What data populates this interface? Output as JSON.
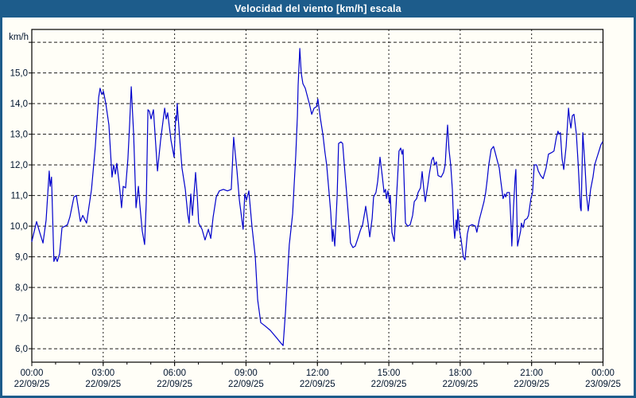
{
  "window": {
    "title": "Velocidad del viento [km/h] escala"
  },
  "chart_data": {
    "type": "line",
    "title": "Velocidad del viento [km/h] escala",
    "xlabel": "",
    "ylabel": "km/h",
    "xlim": [
      0,
      24
    ],
    "ylim": [
      5.56,
      16.42
    ],
    "grid": true,
    "legend": "none",
    "line_color": "#0000cc",
    "background": "#fffef7",
    "frame_color": "#1d5c8b",
    "yticks": [
      {
        "v": 6,
        "label": "6,0"
      },
      {
        "v": 7,
        "label": "7,0"
      },
      {
        "v": 8,
        "label": "8,0"
      },
      {
        "v": 9,
        "label": "9,0"
      },
      {
        "v": 10,
        "label": "10,0"
      },
      {
        "v": 11,
        "label": "11,0"
      },
      {
        "v": 12,
        "label": "12,0"
      },
      {
        "v": 13,
        "label": "13,0"
      },
      {
        "v": 14,
        "label": "14,0"
      },
      {
        "v": 15,
        "label": "15,0"
      },
      {
        "v": 16,
        "label": ""
      }
    ],
    "xticks": [
      {
        "t": 0,
        "time": "00:00",
        "date": "22/09/25"
      },
      {
        "t": 3,
        "time": "03:00",
        "date": "22/09/25"
      },
      {
        "t": 6,
        "time": "06:00",
        "date": "22/09/25"
      },
      {
        "t": 9,
        "time": "09:00",
        "date": "22/09/25"
      },
      {
        "t": 12,
        "time": "12:00",
        "date": "22/09/25"
      },
      {
        "t": 15,
        "time": "15:00",
        "date": "22/09/25"
      },
      {
        "t": 18,
        "time": "18:00",
        "date": "22/09/25"
      },
      {
        "t": 21,
        "time": "21:00",
        "date": "22/09/25"
      },
      {
        "t": 24,
        "time": "00:00",
        "date": "23/09/25"
      }
    ],
    "minor_tick_hours": 1,
    "series": [
      {
        "name": "Velocidad del viento",
        "color": "#0000cc",
        "points": [
          [
            0,
            9.5
          ],
          [
            0.2,
            10.15
          ],
          [
            0.33,
            9.8
          ],
          [
            0.47,
            9.45
          ],
          [
            0.6,
            10.2
          ],
          [
            0.73,
            11.8
          ],
          [
            0.77,
            11.3
          ],
          [
            0.83,
            11.6
          ],
          [
            0.93,
            8.85
          ],
          [
            1.0,
            9.0
          ],
          [
            1.07,
            8.85
          ],
          [
            1.17,
            9.1
          ],
          [
            1.27,
            9.95
          ],
          [
            1.4,
            10.0
          ],
          [
            1.5,
            10.05
          ],
          [
            1.6,
            10.3
          ],
          [
            1.77,
            10.95
          ],
          [
            1.87,
            11.0
          ],
          [
            2.04,
            10.15
          ],
          [
            2.14,
            10.35
          ],
          [
            2.3,
            10.1
          ],
          [
            2.51,
            11.2
          ],
          [
            2.67,
            12.6
          ],
          [
            2.81,
            14.2
          ],
          [
            2.87,
            14.5
          ],
          [
            2.94,
            14.3
          ],
          [
            3.01,
            14.4
          ],
          [
            3.11,
            14.0
          ],
          [
            3.24,
            13.3
          ],
          [
            3.37,
            11.6
          ],
          [
            3.44,
            12.0
          ],
          [
            3.51,
            11.7
          ],
          [
            3.57,
            12.05
          ],
          [
            3.67,
            11.4
          ],
          [
            3.77,
            10.6
          ],
          [
            3.84,
            11.3
          ],
          [
            3.94,
            11.25
          ],
          [
            4.04,
            12.2
          ],
          [
            4.11,
            13.3
          ],
          [
            4.18,
            14.55
          ],
          [
            4.28,
            13.0
          ],
          [
            4.38,
            10.6
          ],
          [
            4.48,
            11.3
          ],
          [
            4.54,
            10.7
          ],
          [
            4.64,
            9.85
          ],
          [
            4.74,
            9.4
          ],
          [
            4.81,
            10.8
          ],
          [
            4.88,
            13.8
          ],
          [
            4.94,
            13.75
          ],
          [
            5.01,
            13.5
          ],
          [
            5.11,
            13.8
          ],
          [
            5.28,
            11.8
          ],
          [
            5.41,
            12.8
          ],
          [
            5.58,
            13.85
          ],
          [
            5.65,
            13.5
          ],
          [
            5.71,
            13.7
          ],
          [
            5.85,
            12.8
          ],
          [
            5.98,
            12.25
          ],
          [
            6.05,
            13.6
          ],
          [
            6.08,
            13.45
          ],
          [
            6.11,
            14.0
          ],
          [
            6.21,
            12.9
          ],
          [
            6.31,
            11.9
          ],
          [
            6.45,
            11.2
          ],
          [
            6.55,
            10.4
          ],
          [
            6.61,
            10.1
          ],
          [
            6.68,
            11.05
          ],
          [
            6.75,
            10.35
          ],
          [
            6.88,
            11.75
          ],
          [
            6.95,
            11.0
          ],
          [
            7.01,
            10.1
          ],
          [
            7.15,
            9.9
          ],
          [
            7.28,
            9.55
          ],
          [
            7.42,
            9.9
          ],
          [
            7.52,
            9.6
          ],
          [
            7.62,
            10.3
          ],
          [
            7.75,
            10.95
          ],
          [
            7.88,
            11.15
          ],
          [
            8.05,
            11.2
          ],
          [
            8.22,
            11.15
          ],
          [
            8.38,
            11.2
          ],
          [
            8.48,
            12.9
          ],
          [
            8.62,
            11.8
          ],
          [
            8.72,
            10.85
          ],
          [
            8.88,
            9.9
          ],
          [
            8.95,
            11.05
          ],
          [
            9.02,
            10.85
          ],
          [
            9.12,
            11.15
          ],
          [
            9.25,
            10.0
          ],
          [
            9.39,
            9.0
          ],
          [
            9.49,
            7.6
          ],
          [
            9.62,
            6.85
          ],
          [
            9.79,
            6.75
          ],
          [
            10.02,
            6.6
          ],
          [
            10.29,
            6.35
          ],
          [
            10.45,
            6.2
          ],
          [
            10.56,
            6.1
          ],
          [
            10.66,
            7.2
          ],
          [
            10.76,
            8.6
          ],
          [
            10.82,
            9.4
          ],
          [
            10.89,
            9.9
          ],
          [
            10.96,
            10.4
          ],
          [
            11.02,
            11.3
          ],
          [
            11.09,
            12.3
          ],
          [
            11.16,
            13.6
          ],
          [
            11.19,
            14.6
          ],
          [
            11.26,
            15.8
          ],
          [
            11.32,
            15.0
          ],
          [
            11.39,
            14.65
          ],
          [
            11.49,
            14.5
          ],
          [
            11.59,
            14.2
          ],
          [
            11.66,
            14.0
          ],
          [
            11.76,
            13.65
          ],
          [
            11.86,
            13.85
          ],
          [
            11.96,
            13.9
          ],
          [
            12.02,
            14.15
          ],
          [
            12.13,
            13.5
          ],
          [
            12.23,
            13.0
          ],
          [
            12.32,
            12.4
          ],
          [
            12.39,
            12.0
          ],
          [
            12.49,
            11.1
          ],
          [
            12.56,
            10.45
          ],
          [
            12.63,
            9.5
          ],
          [
            12.66,
            9.9
          ],
          [
            12.73,
            9.35
          ],
          [
            12.83,
            11.0
          ],
          [
            12.89,
            12.7
          ],
          [
            12.99,
            12.75
          ],
          [
            13.06,
            12.7
          ],
          [
            13.13,
            12.0
          ],
          [
            13.23,
            11.05
          ],
          [
            13.29,
            10.45
          ],
          [
            13.39,
            9.45
          ],
          [
            13.49,
            9.3
          ],
          [
            13.59,
            9.35
          ],
          [
            13.7,
            9.6
          ],
          [
            13.8,
            9.85
          ],
          [
            13.9,
            10.05
          ],
          [
            14.0,
            10.5
          ],
          [
            14.03,
            10.65
          ],
          [
            14.13,
            10.1
          ],
          [
            14.2,
            9.65
          ],
          [
            14.3,
            10.25
          ],
          [
            14.36,
            10.95
          ],
          [
            14.46,
            11.1
          ],
          [
            14.53,
            11.45
          ],
          [
            14.63,
            12.25
          ],
          [
            14.73,
            11.6
          ],
          [
            14.8,
            11.1
          ],
          [
            14.86,
            11.2
          ],
          [
            14.9,
            10.9
          ],
          [
            14.96,
            11.15
          ],
          [
            15.03,
            10.75
          ],
          [
            15.06,
            11.0
          ],
          [
            15.13,
            9.8
          ],
          [
            15.23,
            9.5
          ],
          [
            15.33,
            11.0
          ],
          [
            15.43,
            12.45
          ],
          [
            15.5,
            12.55
          ],
          [
            15.56,
            12.35
          ],
          [
            15.6,
            12.5
          ],
          [
            15.7,
            10.1
          ],
          [
            15.8,
            10.0
          ],
          [
            15.9,
            10.05
          ],
          [
            16.0,
            10.35
          ],
          [
            16.07,
            10.8
          ],
          [
            16.17,
            10.9
          ],
          [
            16.23,
            11.1
          ],
          [
            16.33,
            11.25
          ],
          [
            16.4,
            11.78
          ],
          [
            16.47,
            11.2
          ],
          [
            16.53,
            10.8
          ],
          [
            16.63,
            11.3
          ],
          [
            16.7,
            11.7
          ],
          [
            16.8,
            12.15
          ],
          [
            16.87,
            12.25
          ],
          [
            16.93,
            12.0
          ],
          [
            17.0,
            12.1
          ],
          [
            17.07,
            11.65
          ],
          [
            17.2,
            11.6
          ],
          [
            17.3,
            11.75
          ],
          [
            17.37,
            12.0
          ],
          [
            17.43,
            12.85
          ],
          [
            17.47,
            13.3
          ],
          [
            17.53,
            12.5
          ],
          [
            17.6,
            12.0
          ],
          [
            17.67,
            11.2
          ],
          [
            17.73,
            9.95
          ],
          [
            17.77,
            9.6
          ],
          [
            17.83,
            10.2
          ],
          [
            17.87,
            9.85
          ],
          [
            17.9,
            10.55
          ],
          [
            17.97,
            9.85
          ],
          [
            18.03,
            9.6
          ],
          [
            18.13,
            9.0
          ],
          [
            18.2,
            8.9
          ],
          [
            18.3,
            9.75
          ],
          [
            18.37,
            10.0
          ],
          [
            18.5,
            10.05
          ],
          [
            18.64,
            10.0
          ],
          [
            18.7,
            9.8
          ],
          [
            18.8,
            10.2
          ],
          [
            18.9,
            10.5
          ],
          [
            19.0,
            10.8
          ],
          [
            19.07,
            11.1
          ],
          [
            19.14,
            11.55
          ],
          [
            19.2,
            12.0
          ],
          [
            19.3,
            12.5
          ],
          [
            19.4,
            12.6
          ],
          [
            19.47,
            12.4
          ],
          [
            19.57,
            12.1
          ],
          [
            19.64,
            11.9
          ],
          [
            19.7,
            11.5
          ],
          [
            19.8,
            10.9
          ],
          [
            19.87,
            11.05
          ],
          [
            19.91,
            10.95
          ],
          [
            19.97,
            11.1
          ],
          [
            20.07,
            11.1
          ],
          [
            20.14,
            10.0
          ],
          [
            20.17,
            9.35
          ],
          [
            20.24,
            10.6
          ],
          [
            20.31,
            11.6
          ],
          [
            20.34,
            11.85
          ],
          [
            20.41,
            9.35
          ],
          [
            20.54,
            9.85
          ],
          [
            20.57,
            10.1
          ],
          [
            20.64,
            9.95
          ],
          [
            20.71,
            10.2
          ],
          [
            20.81,
            10.25
          ],
          [
            20.87,
            10.35
          ],
          [
            20.97,
            10.9
          ],
          [
            21.04,
            11.1
          ],
          [
            21.11,
            12.0
          ],
          [
            21.21,
            12.0
          ],
          [
            21.28,
            11.8
          ],
          [
            21.38,
            11.65
          ],
          [
            21.48,
            11.55
          ],
          [
            21.61,
            11.9
          ],
          [
            21.71,
            12.35
          ],
          [
            21.84,
            12.4
          ],
          [
            21.94,
            12.45
          ],
          [
            22.04,
            12.9
          ],
          [
            22.11,
            13.1
          ],
          [
            22.15,
            13.0
          ],
          [
            22.21,
            13.05
          ],
          [
            22.28,
            12.2
          ],
          [
            22.35,
            11.85
          ],
          [
            22.45,
            12.6
          ],
          [
            22.55,
            13.85
          ],
          [
            22.61,
            13.4
          ],
          [
            22.65,
            13.2
          ],
          [
            22.71,
            13.6
          ],
          [
            22.78,
            13.65
          ],
          [
            22.88,
            13.0
          ],
          [
            22.95,
            12.1
          ],
          [
            23.05,
            10.6
          ],
          [
            23.08,
            10.5
          ],
          [
            23.15,
            13.05
          ],
          [
            23.25,
            11.9
          ],
          [
            23.31,
            11.0
          ],
          [
            23.38,
            10.5
          ],
          [
            23.48,
            11.2
          ],
          [
            23.58,
            11.6
          ],
          [
            23.65,
            12.0
          ],
          [
            23.75,
            12.25
          ],
          [
            23.85,
            12.5
          ],
          [
            23.91,
            12.65
          ],
          [
            23.98,
            12.75
          ]
        ]
      }
    ]
  }
}
